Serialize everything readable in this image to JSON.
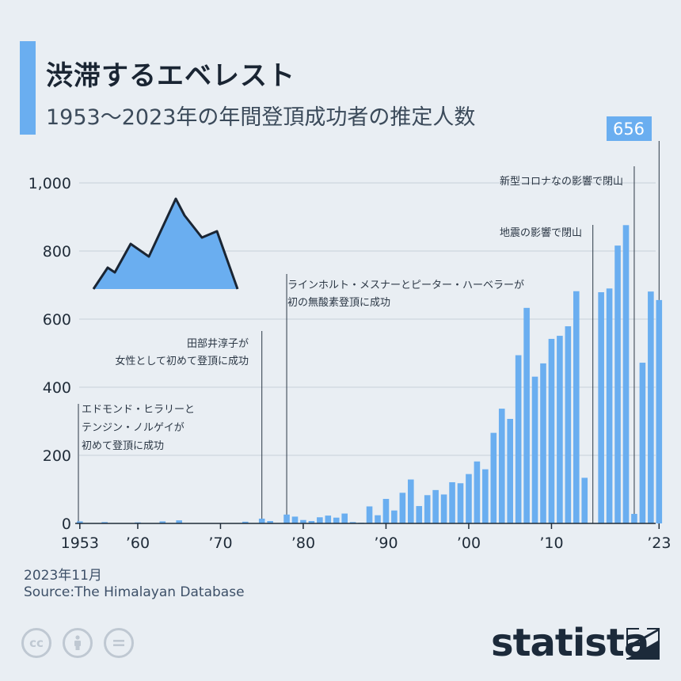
{
  "header": {
    "title": "渋滞するエベレスト",
    "subtitle": "1953～2023年の年間登頂成功者の推定人数"
  },
  "footer": {
    "date": "2023年11月",
    "source": "Source:The Himalayan Database",
    "brand": "statista",
    "license_icons": [
      "cc-icon",
      "by-icon",
      "nd-icon"
    ]
  },
  "colors": {
    "bar": "#6aaef0",
    "accent": "#6aaef0",
    "text": "#1f2b38",
    "grid": "#c8d0d9"
  },
  "chart_data": {
    "type": "bar",
    "title": "1953～2023年の年間登頂成功者の推定人数",
    "x": [
      1953,
      1954,
      1955,
      1956,
      1957,
      1958,
      1959,
      1960,
      1961,
      1962,
      1963,
      1964,
      1965,
      1966,
      1967,
      1968,
      1969,
      1970,
      1971,
      1972,
      1973,
      1974,
      1975,
      1976,
      1977,
      1978,
      1979,
      1980,
      1981,
      1982,
      1983,
      1984,
      1985,
      1986,
      1987,
      1988,
      1989,
      1990,
      1991,
      1992,
      1993,
      1994,
      1995,
      1996,
      1997,
      1998,
      1999,
      2000,
      2001,
      2002,
      2003,
      2004,
      2005,
      2006,
      2007,
      2008,
      2009,
      2010,
      2011,
      2012,
      2013,
      2014,
      2015,
      2016,
      2017,
      2018,
      2019,
      2020,
      2021,
      2022,
      2023
    ],
    "values": [
      6,
      0,
      0,
      4,
      0,
      0,
      0,
      3,
      0,
      0,
      6,
      0,
      9,
      0,
      0,
      0,
      0,
      0,
      0,
      0,
      5,
      0,
      14,
      7,
      0,
      26,
      20,
      10,
      7,
      18,
      23,
      17,
      29,
      4,
      2,
      50,
      24,
      72,
      38,
      90,
      129,
      51,
      83,
      98,
      85,
      121,
      118,
      145,
      182,
      159,
      266,
      337,
      307,
      494,
      633,
      431,
      470,
      542,
      551,
      579,
      682,
      134,
      0,
      679,
      690,
      816,
      876,
      28,
      472,
      681,
      656
    ],
    "ylim": [
      0,
      1000
    ],
    "yticks": [
      0,
      200,
      400,
      600,
      800,
      1000
    ],
    "ytick_labels": [
      "0",
      "200",
      "400",
      "600",
      "800",
      "1,000"
    ],
    "xticks": [
      {
        "year": 1953,
        "label": "1953"
      },
      {
        "year": 1960,
        "label": "’60"
      },
      {
        "year": 1970,
        "label": "’70"
      },
      {
        "year": 1980,
        "label": "’80"
      },
      {
        "year": 1990,
        "label": "’90"
      },
      {
        "year": 2000,
        "label": "’00"
      },
      {
        "year": 2010,
        "label": "’10"
      },
      {
        "year": 2023,
        "label": "’23"
      }
    ],
    "grid": true,
    "highlight": {
      "year": 2023,
      "label": "656"
    },
    "annotations": [
      {
        "year": 1953,
        "lines": [
          "エドモンド・ヒラリーと",
          "テンジン・ノルゲイが",
          "初めて登頂に成功"
        ]
      },
      {
        "year": 1975,
        "lines": [
          "田部井淳子が",
          "女性として初めて登頂に成功"
        ]
      },
      {
        "year": 1978,
        "lines": [
          "ラインホルト・メスナーとピーター・ハーベラーが",
          "初の無酸素登頂に成功"
        ]
      },
      {
        "year": 2015,
        "lines": [
          "地震の影響で閉山"
        ]
      },
      {
        "year": 2020,
        "lines": [
          "新型コロナなの影響で閉山"
        ]
      }
    ]
  }
}
